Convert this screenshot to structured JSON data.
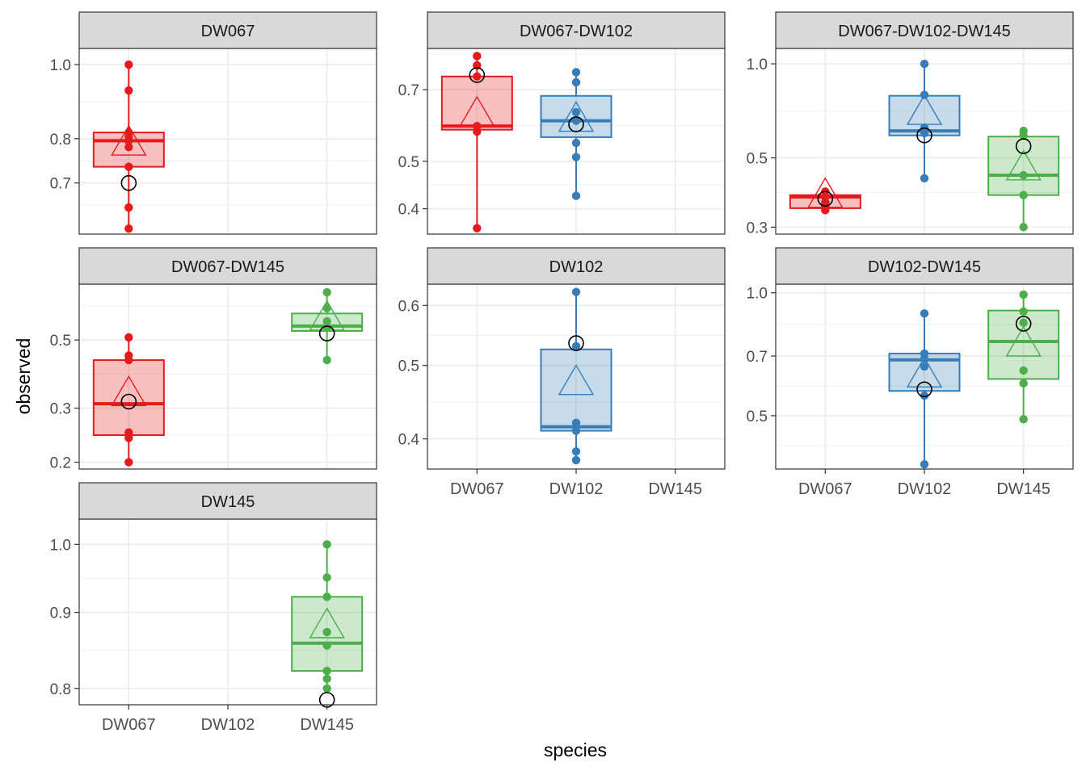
{
  "figure": {
    "xlabel": "species",
    "ylabel": "observed",
    "colors": {
      "DW067": "#e41a1c",
      "DW102": "#377eb8",
      "DW145": "#4daf4a"
    }
  },
  "chart_data": {
    "type": "box",
    "xlabel": "species",
    "ylabel": "observed",
    "categories": [
      "DW067",
      "DW102",
      "DW145"
    ],
    "y_scale": "log",
    "panels": [
      {
        "title": "DW067",
        "ylim": [
          0.6,
          1.05
        ],
        "yticks": [
          0.7,
          0.8,
          1.0
        ],
        "ytick_labels": [
          "0.7",
          "0.8",
          "1.0"
        ],
        "show_x_ticks": false,
        "groups": [
          {
            "species": "DW067",
            "q1": 0.735,
            "median": 0.795,
            "q3": 0.815,
            "whisker_low": 0.61,
            "whisker_high": 1.0,
            "mean": 0.79,
            "ref": 0.7,
            "points": [
              1.0,
              0.925,
              0.815,
              0.805,
              0.795,
              0.78,
              0.735,
              0.65,
              0.61
            ]
          }
        ]
      },
      {
        "title": "DW067-DW102",
        "ylim": [
          0.355,
          0.85
        ],
        "yticks": [
          0.4,
          0.5,
          0.7
        ],
        "ytick_labels": [
          "0.4",
          "0.5",
          "0.7"
        ],
        "show_x_ticks": false,
        "groups": [
          {
            "species": "DW067",
            "q1": 0.58,
            "median": 0.59,
            "q3": 0.745,
            "whisker_low": 0.365,
            "whisker_high": 0.82,
            "mean": 0.625,
            "ref": 0.75,
            "points": [
              0.82,
              0.785,
              0.745,
              0.59,
              0.575,
              0.365
            ]
          },
          {
            "species": "DW102",
            "q1": 0.56,
            "median": 0.605,
            "q3": 0.68,
            "whisker_low": 0.425,
            "whisker_high": 0.76,
            "mean": 0.61,
            "ref": 0.595,
            "points": [
              0.76,
              0.725,
              0.63,
              0.605,
              0.545,
              0.51,
              0.425
            ]
          }
        ]
      },
      {
        "title": "DW067-DW102-DW145",
        "ylim": [
          0.285,
          1.12
        ],
        "yticks": [
          0.3,
          0.5,
          1.0
        ],
        "ytick_labels": [
          "0.3",
          "0.5",
          "1.0"
        ],
        "show_x_ticks": false,
        "groups": [
          {
            "species": "DW067",
            "q1": 0.345,
            "median": 0.375,
            "q3": 0.38,
            "whisker_low": 0.34,
            "whisker_high": 0.39,
            "mean": 0.38,
            "ref": 0.37,
            "points": [
              0.39,
              0.375,
              0.36,
              0.35,
              0.34
            ]
          },
          {
            "species": "DW102",
            "q1": 0.59,
            "median": 0.61,
            "q3": 0.79,
            "whisker_low": 0.43,
            "whisker_high": 1.0,
            "mean": 0.7,
            "ref": 0.59,
            "points": [
              1.0,
              0.795,
              0.625,
              0.6,
              0.43
            ]
          },
          {
            "species": "DW145",
            "q1": 0.38,
            "median": 0.44,
            "q3": 0.585,
            "whisker_low": 0.3,
            "whisker_high": 0.61,
            "mean": 0.465,
            "ref": 0.545,
            "points": [
              0.61,
              0.59,
              0.44,
              0.38,
              0.3
            ]
          }
        ]
      },
      {
        "title": "DW067-DW145",
        "ylim": [
          0.19,
          0.76
        ],
        "yticks": [
          0.2,
          0.3,
          0.5
        ],
        "ytick_labels": [
          "0.2",
          "0.3",
          "0.5"
        ],
        "show_x_ticks": false,
        "groups": [
          {
            "species": "DW067",
            "q1": 0.245,
            "median": 0.31,
            "q3": 0.43,
            "whisker_low": 0.2,
            "whisker_high": 0.51,
            "mean": 0.335,
            "ref": 0.315,
            "points": [
              0.51,
              0.445,
              0.43,
              0.25,
              0.24,
              0.2
            ]
          },
          {
            "species": "DW145",
            "q1": 0.535,
            "median": 0.555,
            "q3": 0.61,
            "whisker_low": 0.43,
            "whisker_high": 0.715,
            "mean": 0.59,
            "ref": 0.525,
            "points": [
              0.715,
              0.635,
              0.575,
              0.55,
              0.43
            ]
          }
        ]
      },
      {
        "title": "DW102",
        "ylim": [
          0.365,
          0.64
        ],
        "yticks": [
          0.4,
          0.5,
          0.6
        ],
        "ytick_labels": [
          "0.4",
          "0.5",
          "0.6"
        ],
        "show_x_ticks": true,
        "groups": [
          {
            "species": "DW102",
            "q1": 0.41,
            "median": 0.415,
            "q3": 0.525,
            "whisker_low": 0.375,
            "whisker_high": 0.625,
            "mean": 0.475,
            "ref": 0.535,
            "points": [
              0.625,
              0.53,
              0.42,
              0.41,
              0.385,
              0.375
            ]
          }
        ]
      },
      {
        "title": "DW102-DW145",
        "ylim": [
          0.37,
          1.05
        ],
        "yticks": [
          0.5,
          0.7,
          1.0
        ],
        "ytick_labels": [
          "0.5",
          "0.7",
          "1.0"
        ],
        "show_x_ticks": true,
        "groups": [
          {
            "species": "DW102",
            "q1": 0.575,
            "median": 0.685,
            "q3": 0.71,
            "whisker_low": 0.38,
            "whisker_high": 0.89,
            "mean": 0.63,
            "ref": 0.58,
            "points": [
              0.89,
              0.71,
              0.69,
              0.66,
              0.56,
              0.38
            ]
          },
          {
            "species": "DW145",
            "q1": 0.615,
            "median": 0.76,
            "q3": 0.905,
            "whisker_low": 0.49,
            "whisker_high": 0.99,
            "mean": 0.75,
            "ref": 0.84,
            "points": [
              0.99,
              0.9,
              0.845,
              0.645,
              0.6,
              0.49
            ]
          }
        ]
      },
      {
        "title": "DW145",
        "ylim": [
          0.78,
          1.04
        ],
        "yticks": [
          0.8,
          0.9,
          1.0
        ],
        "ytick_labels": [
          "0.8",
          "0.9",
          "1.0"
        ],
        "show_x_ticks": true,
        "groups": [
          {
            "species": "DW145",
            "q1": 0.822,
            "median": 0.858,
            "q3": 0.922,
            "whisker_low": 0.8,
            "whisker_high": 1.0,
            "mean": 0.882,
            "ref": 0.786,
            "points": [
              1.0,
              0.95,
              0.922,
              0.873,
              0.855,
              0.822,
              0.812,
              0.8
            ]
          }
        ]
      }
    ]
  }
}
